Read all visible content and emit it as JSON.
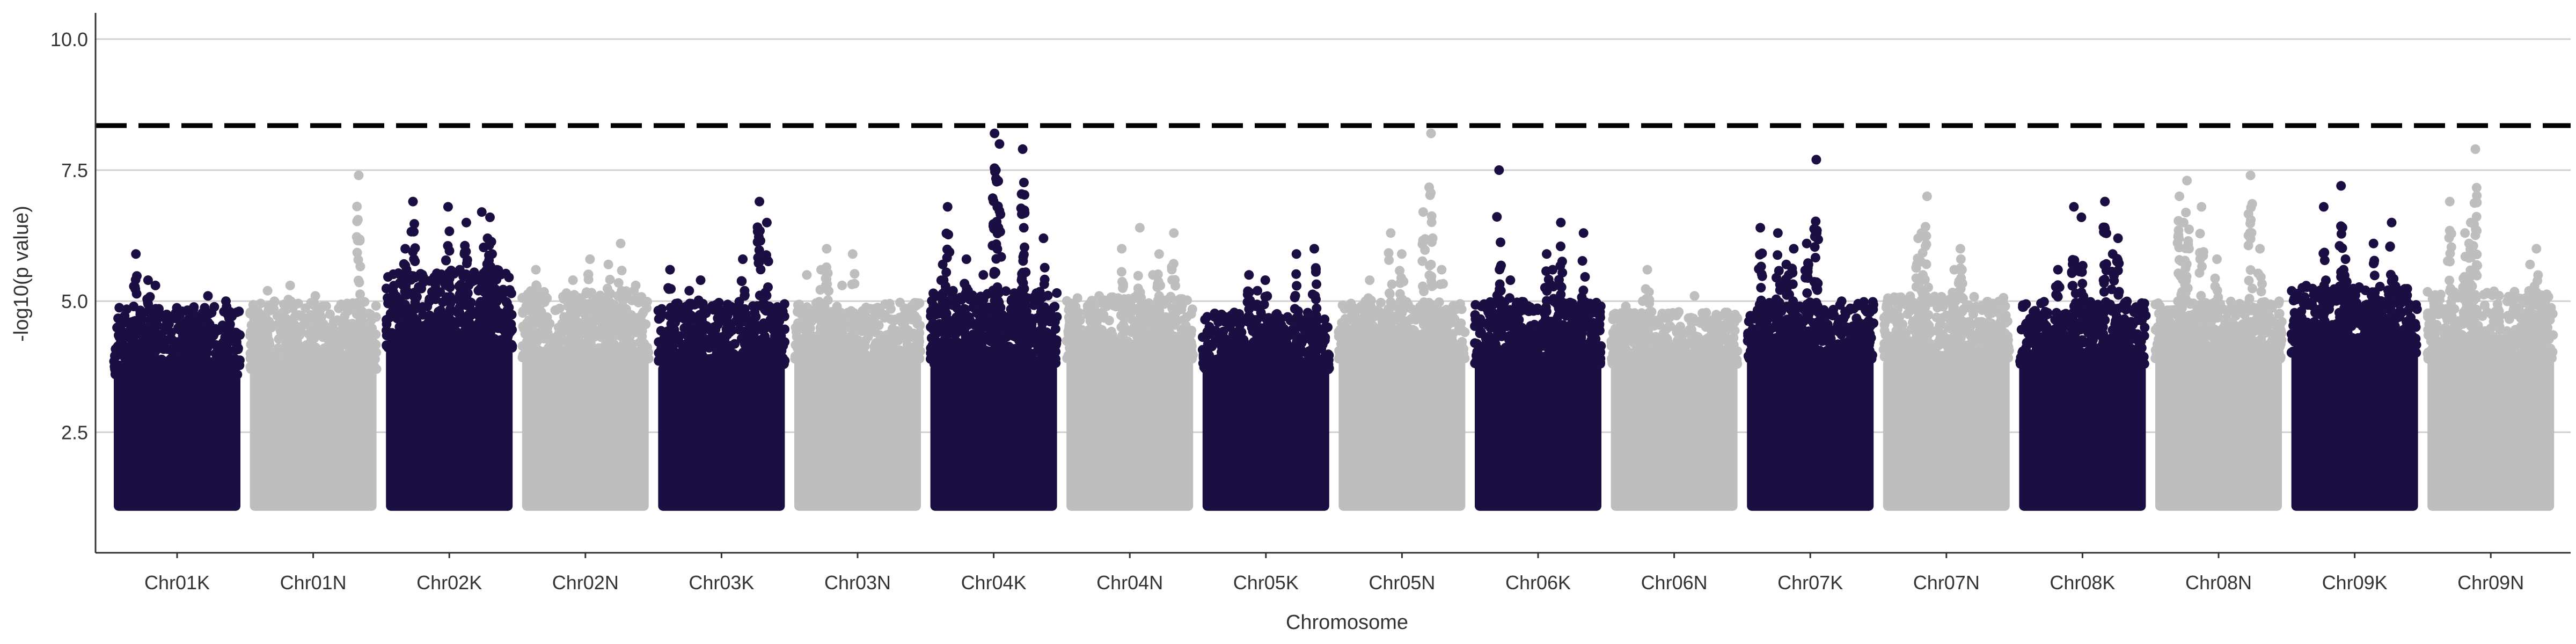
{
  "chart_data": {
    "type": "scatter",
    "xlabel": "Chromosome",
    "ylabel": "-log10(p value)",
    "ylim": [
      0.2,
      10.5
    ],
    "yticks": [
      2.5,
      5.0,
      7.5,
      10.0
    ],
    "ytick_labels": [
      "2.5",
      "5.0",
      "7.5",
      "10.0"
    ],
    "grid": "horizontal",
    "threshold": 8.35,
    "colors": {
      "dark": "#1b0e43",
      "light": "#bebebe",
      "threshold_line": "#000000",
      "grid": "#d0d0d0"
    },
    "categories": [
      "Chr01K",
      "Chr01N",
      "Chr02K",
      "Chr02N",
      "Chr03K",
      "Chr03N",
      "Chr04K",
      "Chr04N",
      "Chr05K",
      "Chr05N",
      "Chr06K",
      "Chr06N",
      "Chr07K",
      "Chr07N",
      "Chr08K",
      "Chr08N",
      "Chr09K",
      "Chr09N"
    ],
    "series": [
      {
        "category": "Chr01K",
        "color": "dark",
        "base_top": 3.6,
        "upper": 4.9,
        "peaks": [
          5.9,
          5.4,
          5.3,
          5.1,
          5.0,
          4.9,
          4.8
        ]
      },
      {
        "category": "Chr01N",
        "color": "light",
        "base_top": 3.7,
        "upper": 5.0,
        "peaks": [
          7.4,
          5.3,
          5.2,
          5.1,
          4.9,
          4.8
        ]
      },
      {
        "category": "Chr02K",
        "color": "dark",
        "base_top": 4.1,
        "upper": 5.6,
        "peaks": [
          6.9,
          6.8,
          6.7,
          6.6,
          6.5,
          6.2,
          6.0,
          5.9,
          5.6,
          5.4
        ]
      },
      {
        "category": "Chr02N",
        "color": "light",
        "base_top": 3.9,
        "upper": 5.2,
        "peaks": [
          6.1,
          5.8,
          5.7,
          5.6,
          5.4,
          5.3
        ]
      },
      {
        "category": "Chr03K",
        "color": "dark",
        "base_top": 3.8,
        "upper": 5.0,
        "peaks": [
          6.9,
          6.5,
          5.8,
          5.6,
          5.4,
          5.2
        ]
      },
      {
        "category": "Chr03N",
        "color": "light",
        "base_top": 3.9,
        "upper": 5.0,
        "peaks": [
          6.0,
          5.9,
          5.6,
          5.5,
          5.3
        ]
      },
      {
        "category": "Chr04K",
        "color": "dark",
        "base_top": 3.8,
        "upper": 5.2,
        "peaks": [
          8.2,
          8.0,
          7.9,
          6.8,
          6.4,
          6.2,
          5.8,
          5.7,
          5.5
        ]
      },
      {
        "category": "Chr04N",
        "color": "light",
        "base_top": 3.9,
        "upper": 5.1,
        "peaks": [
          6.4,
          6.3,
          6.0,
          5.9,
          5.5
        ]
      },
      {
        "category": "Chr05K",
        "color": "dark",
        "base_top": 3.7,
        "upper": 4.8,
        "peaks": [
          6.0,
          5.9,
          5.5,
          5.4,
          5.2,
          5.1
        ]
      },
      {
        "category": "Chr05N",
        "color": "light",
        "base_top": 3.9,
        "upper": 5.0,
        "peaks": [
          8.2,
          6.7,
          6.3,
          5.9,
          5.6,
          5.4
        ]
      },
      {
        "category": "Chr06K",
        "color": "dark",
        "base_top": 3.8,
        "upper": 5.0,
        "peaks": [
          7.5,
          6.5,
          6.3,
          5.9,
          5.6,
          5.4
        ]
      },
      {
        "category": "Chr06N",
        "color": "light",
        "base_top": 3.8,
        "upper": 4.8,
        "peaks": [
          5.6,
          5.1,
          5.0,
          4.9
        ]
      },
      {
        "category": "Chr07K",
        "color": "dark",
        "base_top": 3.9,
        "upper": 5.0,
        "peaks": [
          7.7,
          6.4,
          6.3,
          6.1,
          6.0,
          5.7,
          5.5
        ]
      },
      {
        "category": "Chr07N",
        "color": "light",
        "base_top": 3.9,
        "upper": 5.1,
        "peaks": [
          7.0,
          6.3,
          6.2,
          6.0,
          5.8,
          5.6
        ]
      },
      {
        "category": "Chr08K",
        "color": "dark",
        "base_top": 3.8,
        "upper": 5.0,
        "peaks": [
          6.9,
          6.8,
          6.6,
          6.2,
          5.9,
          5.6,
          5.4
        ]
      },
      {
        "category": "Chr08N",
        "color": "light",
        "base_top": 3.9,
        "upper": 5.0,
        "peaks": [
          7.4,
          7.3,
          7.0,
          6.8,
          6.5,
          6.0,
          5.8
        ]
      },
      {
        "category": "Chr09K",
        "color": "dark",
        "base_top": 4.0,
        "upper": 5.3,
        "peaks": [
          7.2,
          6.8,
          6.5,
          6.1,
          5.8,
          5.6
        ]
      },
      {
        "category": "Chr09N",
        "color": "light",
        "base_top": 3.9,
        "upper": 5.2,
        "peaks": [
          7.9,
          6.9,
          6.5,
          6.3,
          6.0,
          5.9,
          5.7
        ]
      }
    ]
  }
}
